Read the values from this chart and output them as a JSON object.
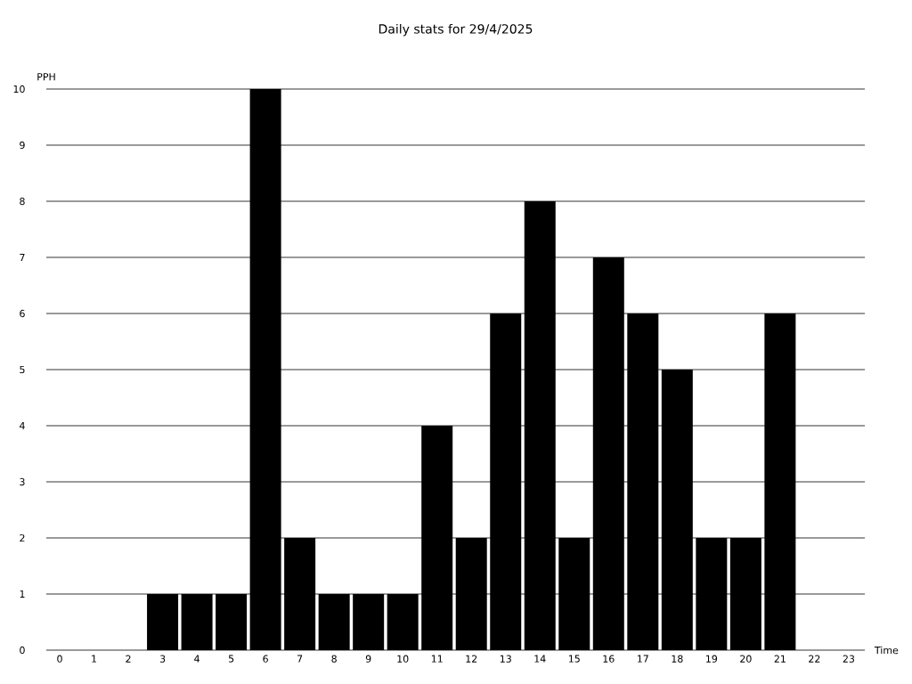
{
  "chart_data": {
    "type": "bar",
    "title": "Daily stats for 29/4/2025",
    "xlabel": "Time",
    "ylabel": "PPH",
    "categories": [
      "0",
      "1",
      "2",
      "3",
      "4",
      "5",
      "6",
      "7",
      "8",
      "9",
      "10",
      "11",
      "12",
      "13",
      "14",
      "15",
      "16",
      "17",
      "18",
      "19",
      "20",
      "21",
      "22",
      "23"
    ],
    "values": [
      0,
      0,
      0,
      1,
      1,
      1,
      10,
      2,
      1,
      1,
      1,
      4,
      2,
      6,
      8,
      2,
      7,
      6,
      5,
      2,
      2,
      6,
      0,
      0
    ],
    "color": "#000000",
    "ylim": [
      0,
      10
    ],
    "yticks": [
      0,
      1,
      2,
      3,
      4,
      5,
      6,
      7,
      8,
      9,
      10
    ],
    "grid": "y"
  }
}
